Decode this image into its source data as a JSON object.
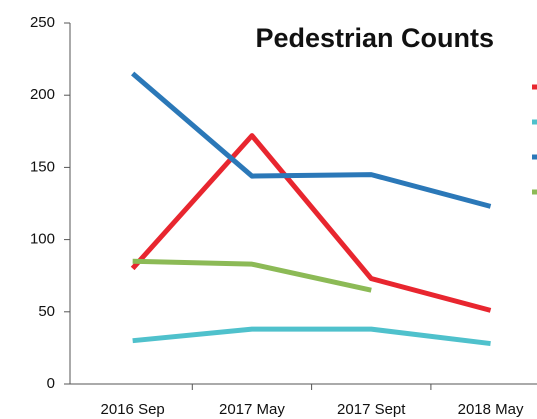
{
  "chart_data": {
    "type": "line",
    "title": "Pedestrian Counts",
    "categories": [
      "2016 Sep",
      "2017 May",
      "2017 Sept",
      "2018 May"
    ],
    "series": [
      {
        "color": "#e8262f",
        "values": [
          80,
          172,
          73,
          51
        ]
      },
      {
        "color": "#4fc1cc",
        "values": [
          30,
          38,
          38,
          28
        ]
      },
      {
        "color": "#2b78b8",
        "values": [
          215,
          144,
          145,
          123
        ]
      },
      {
        "color": "#8cba56",
        "values": [
          85,
          83,
          65,
          null
        ]
      }
    ],
    "ylim": [
      0,
      250
    ],
    "yticks": [
      0,
      50,
      100,
      150,
      200,
      250
    ]
  }
}
